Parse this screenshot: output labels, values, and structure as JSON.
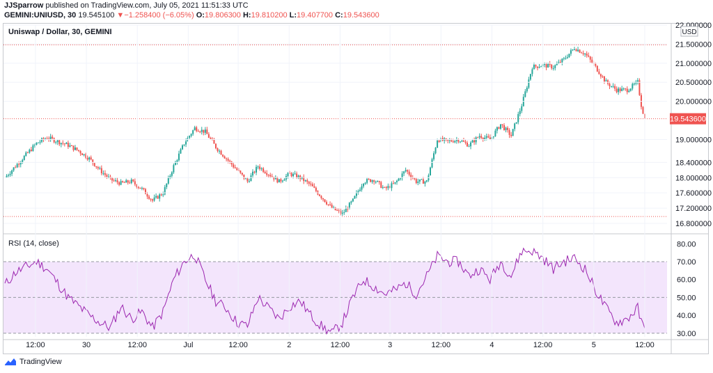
{
  "header": {
    "publisher": "JJSparrow",
    "published_text": "published on TradingView.com, July 05, 2021 11:51:33 UTC",
    "symbol": "GEMINI:UNIUSD, 30",
    "last": "19.545100",
    "change_arrow": "▼",
    "change": "−1.258400 (−6.05%)",
    "o_label": "O:",
    "o": "19.806300",
    "h_label": "H:",
    "h": "19.810200",
    "l_label": "L:",
    "l": "19.407700",
    "c_label": "C:",
    "c": "19.543600"
  },
  "main_pane": {
    "title": "Uniswap / Dollar, 30, GEMINI",
    "currency": "USD",
    "price_tag": "19.543600"
  },
  "rsi_pane": {
    "title": "RSI (14, close)"
  },
  "footer": {
    "brand": "TradingView"
  },
  "colors": {
    "up": "#26a69a",
    "down": "#ef5350",
    "rsi_line": "#9c27b0",
    "rsi_band": "#f3e5fc"
  },
  "chart_data": [
    {
      "type": "candlestick",
      "title": "Uniswap / Dollar, 30, GEMINI",
      "x_ticks": [
        "12:00",
        "30",
        "12:00",
        "Jul",
        "12:00",
        "2",
        "12:00",
        "3",
        "12:00",
        "4",
        "12:00",
        "5",
        "12:00"
      ],
      "y_ticks": [
        "22.000000",
        "21.500000",
        "21.000000",
        "20.500000",
        "20.000000",
        "19.000000",
        "18.400000",
        "18.000000",
        "17.600000",
        "17.200000",
        "16.800000"
      ],
      "ylim": [
        16.6,
        22.0
      ],
      "last_price": 19.5436,
      "reference_lines": [
        21.48,
        19.5436,
        16.98
      ],
      "close_path": [
        [
          0,
          18.0
        ],
        [
          6,
          18.3
        ],
        [
          12,
          18.6
        ],
        [
          18,
          18.9
        ],
        [
          24,
          19.05
        ],
        [
          30,
          18.95
        ],
        [
          36,
          18.85
        ],
        [
          42,
          18.7
        ],
        [
          48,
          18.5
        ],
        [
          54,
          18.2
        ],
        [
          60,
          17.95
        ],
        [
          66,
          17.85
        ],
        [
          72,
          17.9
        ],
        [
          78,
          17.7
        ],
        [
          84,
          17.4
        ],
        [
          90,
          17.6
        ],
        [
          96,
          18.3
        ],
        [
          102,
          18.9
        ],
        [
          108,
          19.3
        ],
        [
          114,
          19.2
        ],
        [
          120,
          18.8
        ],
        [
          126,
          18.5
        ],
        [
          132,
          18.2
        ],
        [
          138,
          17.9
        ],
        [
          144,
          18.3
        ],
        [
          150,
          18.1
        ],
        [
          156,
          17.9
        ],
        [
          162,
          18.1
        ],
        [
          168,
          18.0
        ],
        [
          174,
          17.8
        ],
        [
          180,
          17.5
        ],
        [
          186,
          17.2
        ],
        [
          192,
          17.05
        ],
        [
          198,
          17.4
        ],
        [
          204,
          17.9
        ],
        [
          210,
          17.95
        ],
        [
          216,
          17.7
        ],
        [
          222,
          17.85
        ],
        [
          228,
          18.2
        ],
        [
          234,
          17.9
        ],
        [
          240,
          17.9
        ],
        [
          246,
          19.0
        ],
        [
          252,
          18.95
        ],
        [
          258,
          19.0
        ],
        [
          264,
          18.85
        ],
        [
          270,
          19.1
        ],
        [
          276,
          19.0
        ],
        [
          282,
          19.4
        ],
        [
          288,
          19.1
        ],
        [
          294,
          19.9
        ],
        [
          300,
          20.9
        ],
        [
          306,
          20.95
        ],
        [
          312,
          20.9
        ],
        [
          318,
          21.1
        ],
        [
          324,
          21.4
        ],
        [
          330,
          21.25
        ],
        [
          336,
          20.9
        ],
        [
          342,
          20.5
        ],
        [
          348,
          20.3
        ],
        [
          354,
          20.3
        ],
        [
          360,
          20.5
        ],
        [
          362,
          19.9
        ],
        [
          364,
          19.54
        ]
      ]
    },
    {
      "type": "line",
      "title": "RSI (14, close)",
      "y_ticks": [
        "80.00",
        "70.00",
        "60.00",
        "50.00",
        "40.00",
        "30.00"
      ],
      "ylim": [
        28,
        84
      ],
      "band": [
        30,
        70
      ],
      "midline": 50,
      "series": [
        {
          "values": [
            [
              0,
              57
            ],
            [
              6,
              64
            ],
            [
              12,
              67
            ],
            [
              18,
              70
            ],
            [
              24,
              66
            ],
            [
              30,
              58
            ],
            [
              36,
              50
            ],
            [
              42,
              45
            ],
            [
              48,
              40
            ],
            [
              54,
              36
            ],
            [
              60,
              33
            ],
            [
              66,
              45
            ],
            [
              72,
              38
            ],
            [
              78,
              42
            ],
            [
              84,
              33
            ],
            [
              90,
              42
            ],
            [
              96,
              60
            ],
            [
              102,
              70
            ],
            [
              108,
              74
            ],
            [
              114,
              60
            ],
            [
              120,
              48
            ],
            [
              126,
              44
            ],
            [
              132,
              36
            ],
            [
              138,
              34
            ],
            [
              144,
              50
            ],
            [
              150,
              44
            ],
            [
              156,
              38
            ],
            [
              162,
              45
            ],
            [
              168,
              48
            ],
            [
              174,
              40
            ],
            [
              180,
              34
            ],
            [
              186,
              30
            ],
            [
              192,
              36
            ],
            [
              198,
              50
            ],
            [
              204,
              60
            ],
            [
              210,
              56
            ],
            [
              216,
              52
            ],
            [
              222,
              54
            ],
            [
              228,
              58
            ],
            [
              234,
              52
            ],
            [
              240,
              62
            ],
            [
              246,
              73
            ],
            [
              252,
              70
            ],
            [
              258,
              70
            ],
            [
              264,
              62
            ],
            [
              270,
              66
            ],
            [
              276,
              60
            ],
            [
              282,
              70
            ],
            [
              288,
              62
            ],
            [
              294,
              76
            ],
            [
              300,
              76
            ],
            [
              306,
              72
            ],
            [
              312,
              66
            ],
            [
              318,
              70
            ],
            [
              324,
              72
            ],
            [
              330,
              66
            ],
            [
              336,
              54
            ],
            [
              342,
              44
            ],
            [
              348,
              36
            ],
            [
              354,
              38
            ],
            [
              360,
              44
            ],
            [
              362,
              36
            ],
            [
              364,
              32
            ]
          ]
        }
      ]
    }
  ]
}
